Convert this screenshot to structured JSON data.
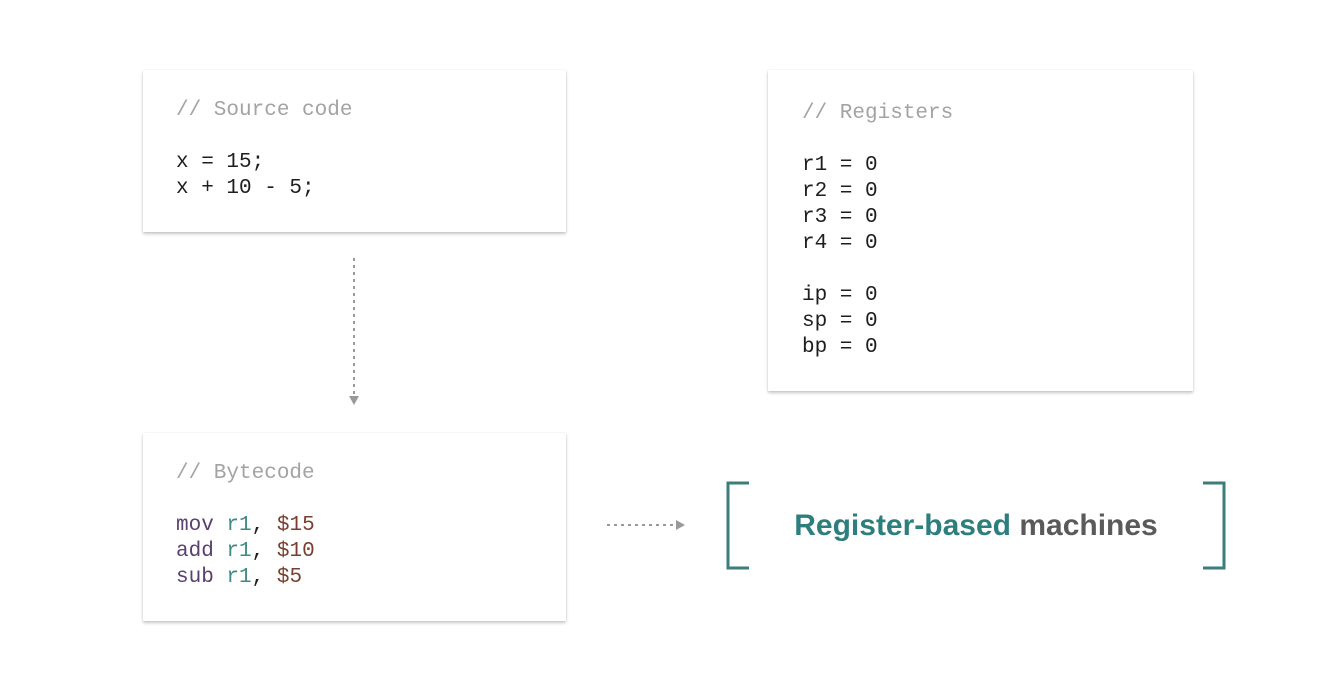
{
  "source_card": {
    "comment": "// Source code",
    "lines": [
      "x = 15;",
      "x + 10 - 5;"
    ]
  },
  "registers_card": {
    "comment": "// Registers",
    "general": [
      "r1 = 0",
      "r2 = 0",
      "r3 = 0",
      "r4 = 0"
    ],
    "special": [
      "ip = 0",
      "sp = 0",
      "bp = 0"
    ]
  },
  "bytecode_card": {
    "comment": "// Bytecode",
    "instructions": [
      {
        "op": "mov",
        "reg": "r1",
        "sep": ", ",
        "arg": "$15"
      },
      {
        "op": "add",
        "reg": "r1",
        "sep": ", ",
        "arg": "$10"
      },
      {
        "op": "sub",
        "reg": "r1",
        "sep": ", ",
        "arg": "$5"
      }
    ]
  },
  "title": {
    "strong": "Register-based",
    "rest": "machines"
  },
  "colors": {
    "accent": "#2d7f7d",
    "bracket": "#3d7d7b",
    "comment": "#a3a3a3",
    "opcode": "#5b3f6e",
    "register": "#3d8a86",
    "number": "#7a3e2e",
    "arrow": "#999999"
  }
}
